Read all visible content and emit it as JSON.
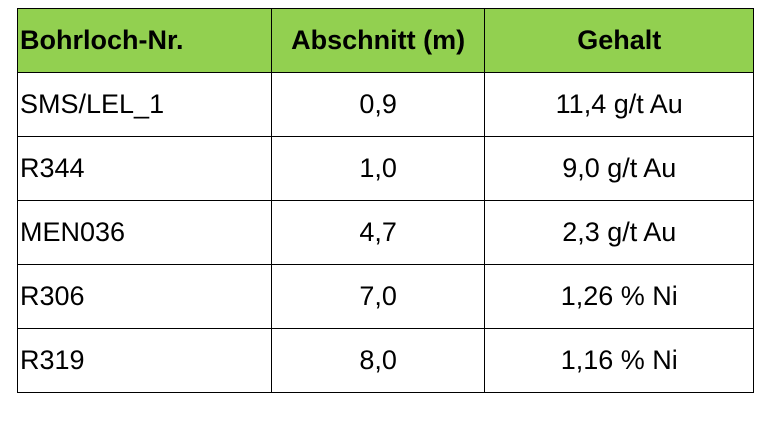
{
  "table": {
    "header": [
      "Bohrloch-Nr.",
      "Abschnitt (m)",
      "Gehalt"
    ],
    "rows": [
      [
        "SMS/LEL_1",
        "0,9",
        "11,4 g/t Au"
      ],
      [
        "R344",
        "1,0",
        "9,0 g/t Au"
      ],
      [
        "MEN036",
        "4,7",
        "2,3 g/t Au"
      ],
      [
        "R306",
        "7,0",
        "1,26 % Ni"
      ],
      [
        "R319",
        "8,0",
        "1,16 % Ni"
      ]
    ]
  }
}
